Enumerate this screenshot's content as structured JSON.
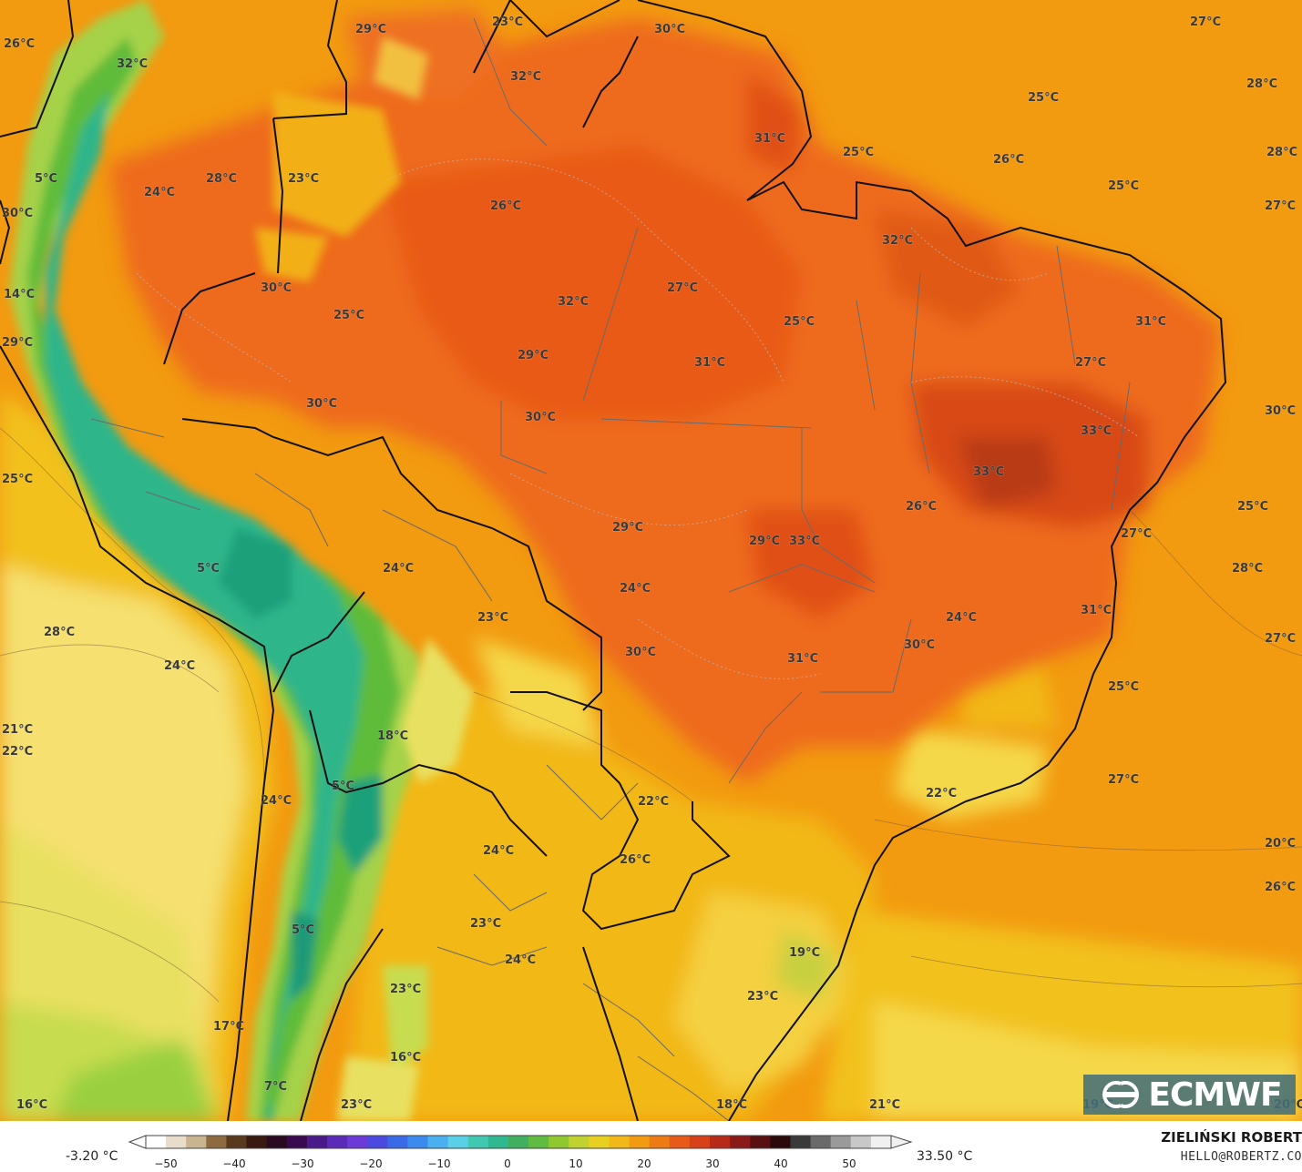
{
  "map": {
    "background_color": "#f29a10",
    "colors": {
      "warm": "#ee6a1e",
      "hot": "#e0501a",
      "very_hot": "#c9401a",
      "pale_yellow": "#f5e070",
      "yellow": "#f2c11e",
      "light_green": "#a5d24a",
      "green": "#5fbc3a",
      "teal": "#2fb58a",
      "coast_line": "#111111",
      "border_line": "#6a6a6a"
    },
    "labels": [
      {
        "text": "26°C"
      },
      {
        "text": "32°C"
      },
      {
        "text": "29°C"
      },
      {
        "text": "23°C"
      },
      {
        "text": "30°C"
      },
      {
        "text": "27°C"
      },
      {
        "text": "28°C"
      },
      {
        "text": "32°C"
      },
      {
        "text": "25°C"
      },
      {
        "text": "28°C"
      },
      {
        "text": "31°C"
      },
      {
        "text": "5°C"
      },
      {
        "text": "28°C"
      },
      {
        "text": "23°C"
      },
      {
        "text": "24°C"
      },
      {
        "text": "25°C"
      },
      {
        "text": "26°C"
      },
      {
        "text": "25°C"
      },
      {
        "text": "30°C"
      },
      {
        "text": "26°C"
      },
      {
        "text": "27°C"
      },
      {
        "text": "32°C"
      },
      {
        "text": "14°C"
      },
      {
        "text": "30°C"
      },
      {
        "text": "32°C"
      },
      {
        "text": "27°C"
      },
      {
        "text": "25°C"
      },
      {
        "text": "25°C"
      },
      {
        "text": "31°C"
      },
      {
        "text": "29°C"
      },
      {
        "text": "29°C"
      },
      {
        "text": "31°C"
      },
      {
        "text": "27°C"
      },
      {
        "text": "30°C"
      },
      {
        "text": "30°C"
      },
      {
        "text": "30°C"
      },
      {
        "text": "33°C"
      },
      {
        "text": "33°C"
      },
      {
        "text": "25°C"
      },
      {
        "text": "26°C"
      },
      {
        "text": "25°C"
      },
      {
        "text": "27°C"
      },
      {
        "text": "29°C"
      },
      {
        "text": "29°C"
      },
      {
        "text": "33°C"
      },
      {
        "text": "5°C"
      },
      {
        "text": "28°C"
      },
      {
        "text": "24°C"
      },
      {
        "text": "28°C"
      },
      {
        "text": "23°C"
      },
      {
        "text": "24°C"
      },
      {
        "text": "31°C"
      },
      {
        "text": "24°C"
      },
      {
        "text": "24°C"
      },
      {
        "text": "30°C"
      },
      {
        "text": "31°C"
      },
      {
        "text": "30°C"
      },
      {
        "text": "27°C"
      },
      {
        "text": "25°C"
      },
      {
        "text": "21°C"
      },
      {
        "text": "18°C"
      },
      {
        "text": "22°C"
      },
      {
        "text": "27°C"
      },
      {
        "text": "5°C"
      },
      {
        "text": "24°C"
      },
      {
        "text": "22°C"
      },
      {
        "text": "22°C"
      },
      {
        "text": "24°C"
      },
      {
        "text": "26°C"
      },
      {
        "text": "20°C"
      },
      {
        "text": "26°C"
      },
      {
        "text": "23°C"
      },
      {
        "text": "5°C"
      },
      {
        "text": "24°C"
      },
      {
        "text": "19°C"
      },
      {
        "text": "23°C"
      },
      {
        "text": "23°C"
      },
      {
        "text": "17°C"
      },
      {
        "text": "16°C"
      },
      {
        "text": "7°C"
      },
      {
        "text": "16°C"
      },
      {
        "text": "23°C"
      },
      {
        "text": "18°C"
      },
      {
        "text": "21°C"
      },
      {
        "text": "19°C"
      },
      {
        "text": "20°C"
      }
    ]
  },
  "logo": {
    "text": "ECMWF",
    "icon": "ecmwf-logo-icon"
  },
  "colorbar": {
    "min_label": "-3.20 °C",
    "max_label": "33.50 °C",
    "ticks": [
      "−50",
      "−40",
      "−30",
      "−20",
      "−10",
      "0",
      "10",
      "20",
      "30",
      "40",
      "50"
    ],
    "colors": [
      "#ffffff",
      "#e8dccb",
      "#c9b48f",
      "#8d6a3f",
      "#5a3a1e",
      "#3a1a10",
      "#2a0a20",
      "#3a0a50",
      "#4b1a8a",
      "#5a2ab8",
      "#6b3ad8",
      "#4a4ae0",
      "#3a6ae8",
      "#3a8af0",
      "#4ab0f0",
      "#5ad0e8",
      "#40c8b0",
      "#30b890",
      "#40b060",
      "#60bc40",
      "#90c830",
      "#c0d230",
      "#e8d020",
      "#f2b818",
      "#f29a10",
      "#ee7a14",
      "#e85a18",
      "#d84018",
      "#b82a18",
      "#8a1a18",
      "#5a1012",
      "#2a0a0a",
      "#3a3a3a",
      "#6a6a6a",
      "#9a9a9a",
      "#c8c8c8",
      "#f0f0f0"
    ]
  },
  "author": {
    "name": "ZIELIŃSKI ROBERT",
    "email": "HELLO@ROBERTZ.CO"
  }
}
